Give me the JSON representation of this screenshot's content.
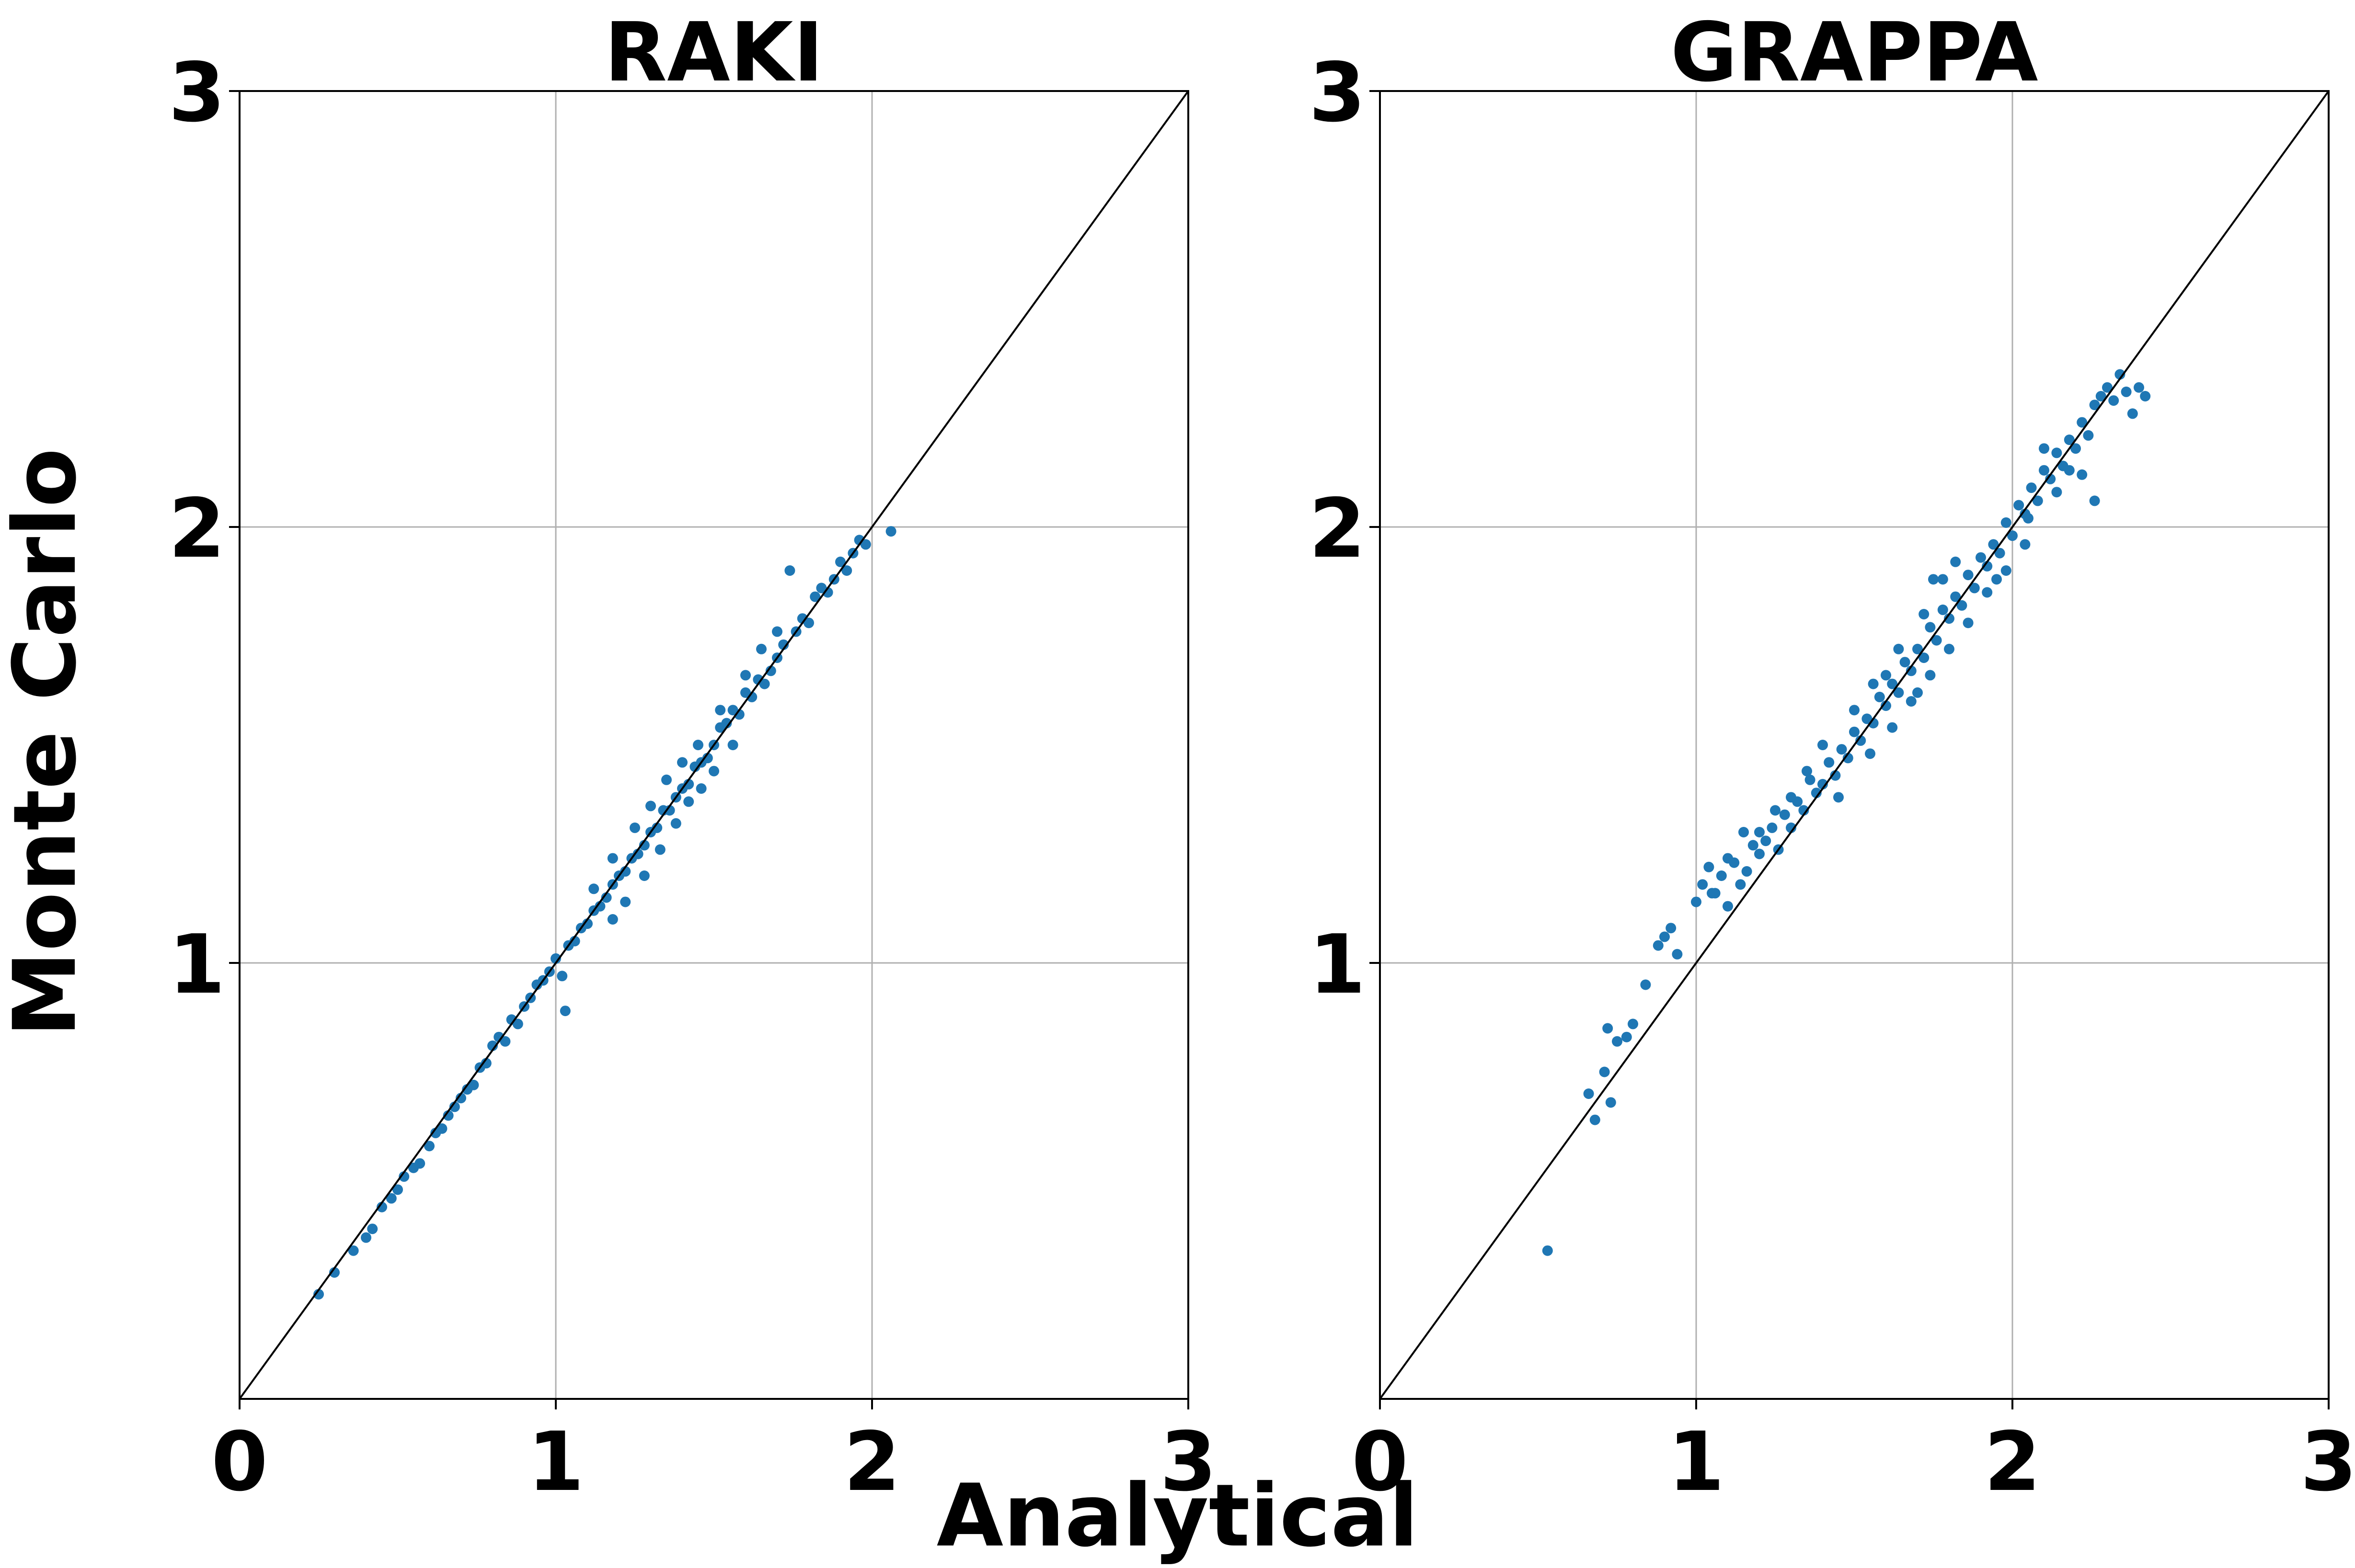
{
  "figure": {
    "xlabel": "Analytical",
    "ylabel": "Monte Carlo",
    "colors": {
      "points": "#1f77b4",
      "identity_line": "#000000",
      "grid": "#b0b0b0"
    }
  },
  "chart_data": [
    {
      "type": "scatter",
      "title": "RAKI",
      "xlim": [
        0,
        3
      ],
      "ylim": [
        0,
        3
      ],
      "xticks": [
        "0",
        "1",
        "2",
        "3"
      ],
      "yticks": [
        "1",
        "2",
        "3"
      ],
      "grid": true,
      "reference_line": "y = x",
      "points": [
        [
          0.25,
          0.24
        ],
        [
          0.3,
          0.29
        ],
        [
          0.36,
          0.34
        ],
        [
          0.4,
          0.37
        ],
        [
          0.42,
          0.39
        ],
        [
          0.45,
          0.44
        ],
        [
          0.48,
          0.46
        ],
        [
          0.5,
          0.48
        ],
        [
          0.52,
          0.51
        ],
        [
          0.55,
          0.53
        ],
        [
          0.57,
          0.54
        ],
        [
          0.6,
          0.58
        ],
        [
          0.62,
          0.61
        ],
        [
          0.64,
          0.62
        ],
        [
          0.66,
          0.65
        ],
        [
          0.68,
          0.67
        ],
        [
          0.7,
          0.69
        ],
        [
          0.72,
          0.71
        ],
        [
          0.74,
          0.72
        ],
        [
          0.76,
          0.76
        ],
        [
          0.78,
          0.77
        ],
        [
          0.8,
          0.81
        ],
        [
          0.82,
          0.83
        ],
        [
          0.84,
          0.82
        ],
        [
          0.86,
          0.87
        ],
        [
          0.88,
          0.86
        ],
        [
          0.9,
          0.9
        ],
        [
          0.92,
          0.92
        ],
        [
          0.94,
          0.95
        ],
        [
          0.96,
          0.96
        ],
        [
          0.98,
          0.98
        ],
        [
          1.0,
          1.01
        ],
        [
          1.02,
          0.97
        ],
        [
          1.03,
          0.89
        ],
        [
          1.04,
          1.04
        ],
        [
          1.06,
          1.05
        ],
        [
          1.08,
          1.08
        ],
        [
          1.1,
          1.09
        ],
        [
          1.12,
          1.12
        ],
        [
          1.14,
          1.13
        ],
        [
          1.16,
          1.15
        ],
        [
          1.18,
          1.18
        ],
        [
          1.2,
          1.2
        ],
        [
          1.22,
          1.21
        ],
        [
          1.24,
          1.24
        ],
        [
          1.26,
          1.25
        ],
        [
          1.28,
          1.27
        ],
        [
          1.3,
          1.3
        ],
        [
          1.32,
          1.31
        ],
        [
          1.34,
          1.35
        ],
        [
          1.36,
          1.35
        ],
        [
          1.38,
          1.38
        ],
        [
          1.4,
          1.4
        ],
        [
          1.42,
          1.41
        ],
        [
          1.44,
          1.45
        ],
        [
          1.46,
          1.46
        ],
        [
          1.48,
          1.47
        ],
        [
          1.5,
          1.5
        ],
        [
          1.52,
          1.54
        ],
        [
          1.54,
          1.55
        ],
        [
          1.56,
          1.58
        ],
        [
          1.58,
          1.57
        ],
        [
          1.6,
          1.62
        ],
        [
          1.62,
          1.61
        ],
        [
          1.64,
          1.65
        ],
        [
          1.66,
          1.64
        ],
        [
          1.68,
          1.67
        ],
        [
          1.7,
          1.7
        ],
        [
          1.72,
          1.73
        ],
        [
          1.74,
          1.9
        ],
        [
          1.76,
          1.76
        ],
        [
          1.78,
          1.79
        ],
        [
          1.8,
          1.78
        ],
        [
          1.82,
          1.84
        ],
        [
          1.84,
          1.86
        ],
        [
          1.86,
          1.85
        ],
        [
          1.88,
          1.88
        ],
        [
          1.9,
          1.92
        ],
        [
          1.92,
          1.9
        ],
        [
          1.94,
          1.94
        ],
        [
          1.96,
          1.97
        ],
        [
          1.98,
          1.96
        ],
        [
          2.06,
          1.99
        ],
        [
          1.18,
          1.1
        ],
        [
          1.22,
          1.14
        ],
        [
          1.28,
          1.2
        ],
        [
          1.33,
          1.26
        ],
        [
          1.38,
          1.32
        ],
        [
          1.42,
          1.37
        ],
        [
          1.46,
          1.4
        ],
        [
          1.5,
          1.44
        ],
        [
          1.56,
          1.5
        ],
        [
          1.25,
          1.31
        ],
        [
          1.3,
          1.36
        ],
        [
          1.35,
          1.42
        ],
        [
          1.4,
          1.46
        ],
        [
          1.45,
          1.5
        ],
        [
          1.52,
          1.58
        ],
        [
          1.6,
          1.66
        ],
        [
          1.65,
          1.72
        ],
        [
          1.7,
          1.76
        ],
        [
          1.18,
          1.24
        ],
        [
          1.12,
          1.17
        ]
      ]
    },
    {
      "type": "scatter",
      "title": "GRAPPA",
      "xlim": [
        0,
        3
      ],
      "ylim": [
        0,
        3
      ],
      "xticks": [
        "0",
        "1",
        "2",
        "3"
      ],
      "yticks": [
        "1",
        "2",
        "3"
      ],
      "grid": true,
      "reference_line": "y = x",
      "points": [
        [
          0.53,
          0.34
        ],
        [
          0.66,
          0.7
        ],
        [
          0.68,
          0.64
        ],
        [
          0.71,
          0.75
        ],
        [
          0.72,
          0.85
        ],
        [
          0.73,
          0.68
        ],
        [
          0.75,
          0.82
        ],
        [
          0.78,
          0.83
        ],
        [
          0.8,
          0.86
        ],
        [
          0.84,
          0.95
        ],
        [
          0.88,
          1.04
        ],
        [
          0.9,
          1.06
        ],
        [
          0.92,
          1.08
        ],
        [
          0.94,
          1.02
        ],
        [
          1.0,
          1.14
        ],
        [
          1.02,
          1.18
        ],
        [
          1.04,
          1.22
        ],
        [
          1.06,
          1.16
        ],
        [
          1.08,
          1.2
        ],
        [
          1.1,
          1.13
        ],
        [
          1.12,
          1.23
        ],
        [
          1.14,
          1.18
        ],
        [
          1.16,
          1.21
        ],
        [
          1.18,
          1.27
        ],
        [
          1.2,
          1.25
        ],
        [
          1.22,
          1.28
        ],
        [
          1.24,
          1.31
        ],
        [
          1.26,
          1.26
        ],
        [
          1.28,
          1.34
        ],
        [
          1.3,
          1.31
        ],
        [
          1.32,
          1.37
        ],
        [
          1.34,
          1.35
        ],
        [
          1.36,
          1.42
        ],
        [
          1.38,
          1.39
        ],
        [
          1.4,
          1.41
        ],
        [
          1.42,
          1.46
        ],
        [
          1.44,
          1.43
        ],
        [
          1.46,
          1.49
        ],
        [
          1.48,
          1.47
        ],
        [
          1.5,
          1.53
        ],
        [
          1.52,
          1.51
        ],
        [
          1.54,
          1.56
        ],
        [
          1.56,
          1.55
        ],
        [
          1.58,
          1.61
        ],
        [
          1.6,
          1.59
        ],
        [
          1.62,
          1.64
        ],
        [
          1.64,
          1.62
        ],
        [
          1.66,
          1.69
        ],
        [
          1.68,
          1.67
        ],
        [
          1.7,
          1.72
        ],
        [
          1.72,
          1.7
        ],
        [
          1.74,
          1.77
        ],
        [
          1.76,
          1.74
        ],
        [
          1.78,
          1.81
        ],
        [
          1.8,
          1.79
        ],
        [
          1.82,
          1.84
        ],
        [
          1.84,
          1.82
        ],
        [
          1.86,
          1.89
        ],
        [
          1.88,
          1.86
        ],
        [
          1.9,
          1.93
        ],
        [
          1.92,
          1.91
        ],
        [
          1.94,
          1.96
        ],
        [
          1.96,
          1.94
        ],
        [
          1.98,
          2.01
        ],
        [
          2.0,
          1.98
        ],
        [
          2.02,
          2.05
        ],
        [
          2.04,
          2.03
        ],
        [
          2.06,
          2.09
        ],
        [
          2.08,
          2.06
        ],
        [
          2.1,
          2.13
        ],
        [
          2.12,
          2.11
        ],
        [
          2.14,
          2.17
        ],
        [
          2.16,
          2.14
        ],
        [
          2.18,
          2.2
        ],
        [
          2.2,
          2.18
        ],
        [
          2.22,
          2.24
        ],
        [
          2.24,
          2.21
        ],
        [
          2.26,
          2.28
        ],
        [
          2.28,
          2.3
        ],
        [
          2.3,
          2.32
        ],
        [
          2.32,
          2.29
        ],
        [
          2.34,
          2.35
        ],
        [
          2.36,
          2.31
        ],
        [
          2.38,
          2.26
        ],
        [
          2.4,
          2.32
        ],
        [
          2.42,
          2.3
        ],
        [
          2.26,
          2.06
        ],
        [
          2.22,
          2.12
        ],
        [
          2.1,
          2.18
        ],
        [
          2.05,
          2.02
        ],
        [
          1.95,
          1.88
        ],
        [
          1.82,
          1.92
        ],
        [
          1.75,
          1.88
        ],
        [
          1.7,
          1.62
        ],
        [
          1.6,
          1.66
        ],
        [
          1.55,
          1.48
        ],
        [
          1.5,
          1.58
        ],
        [
          1.45,
          1.38
        ],
        [
          1.4,
          1.5
        ],
        [
          1.35,
          1.44
        ],
        [
          1.3,
          1.38
        ],
        [
          1.25,
          1.35
        ],
        [
          1.2,
          1.3
        ],
        [
          1.15,
          1.3
        ],
        [
          1.1,
          1.24
        ],
        [
          1.05,
          1.16
        ],
        [
          1.62,
          1.54
        ],
        [
          1.68,
          1.6
        ],
        [
          1.74,
          1.66
        ],
        [
          1.8,
          1.72
        ],
        [
          1.86,
          1.78
        ],
        [
          1.92,
          1.85
        ],
        [
          1.98,
          1.9
        ],
        [
          2.04,
          1.96
        ],
        [
          2.14,
          2.08
        ],
        [
          2.18,
          2.13
        ],
        [
          1.56,
          1.64
        ],
        [
          1.64,
          1.72
        ],
        [
          1.72,
          1.8
        ],
        [
          1.78,
          1.88
        ]
      ]
    }
  ]
}
